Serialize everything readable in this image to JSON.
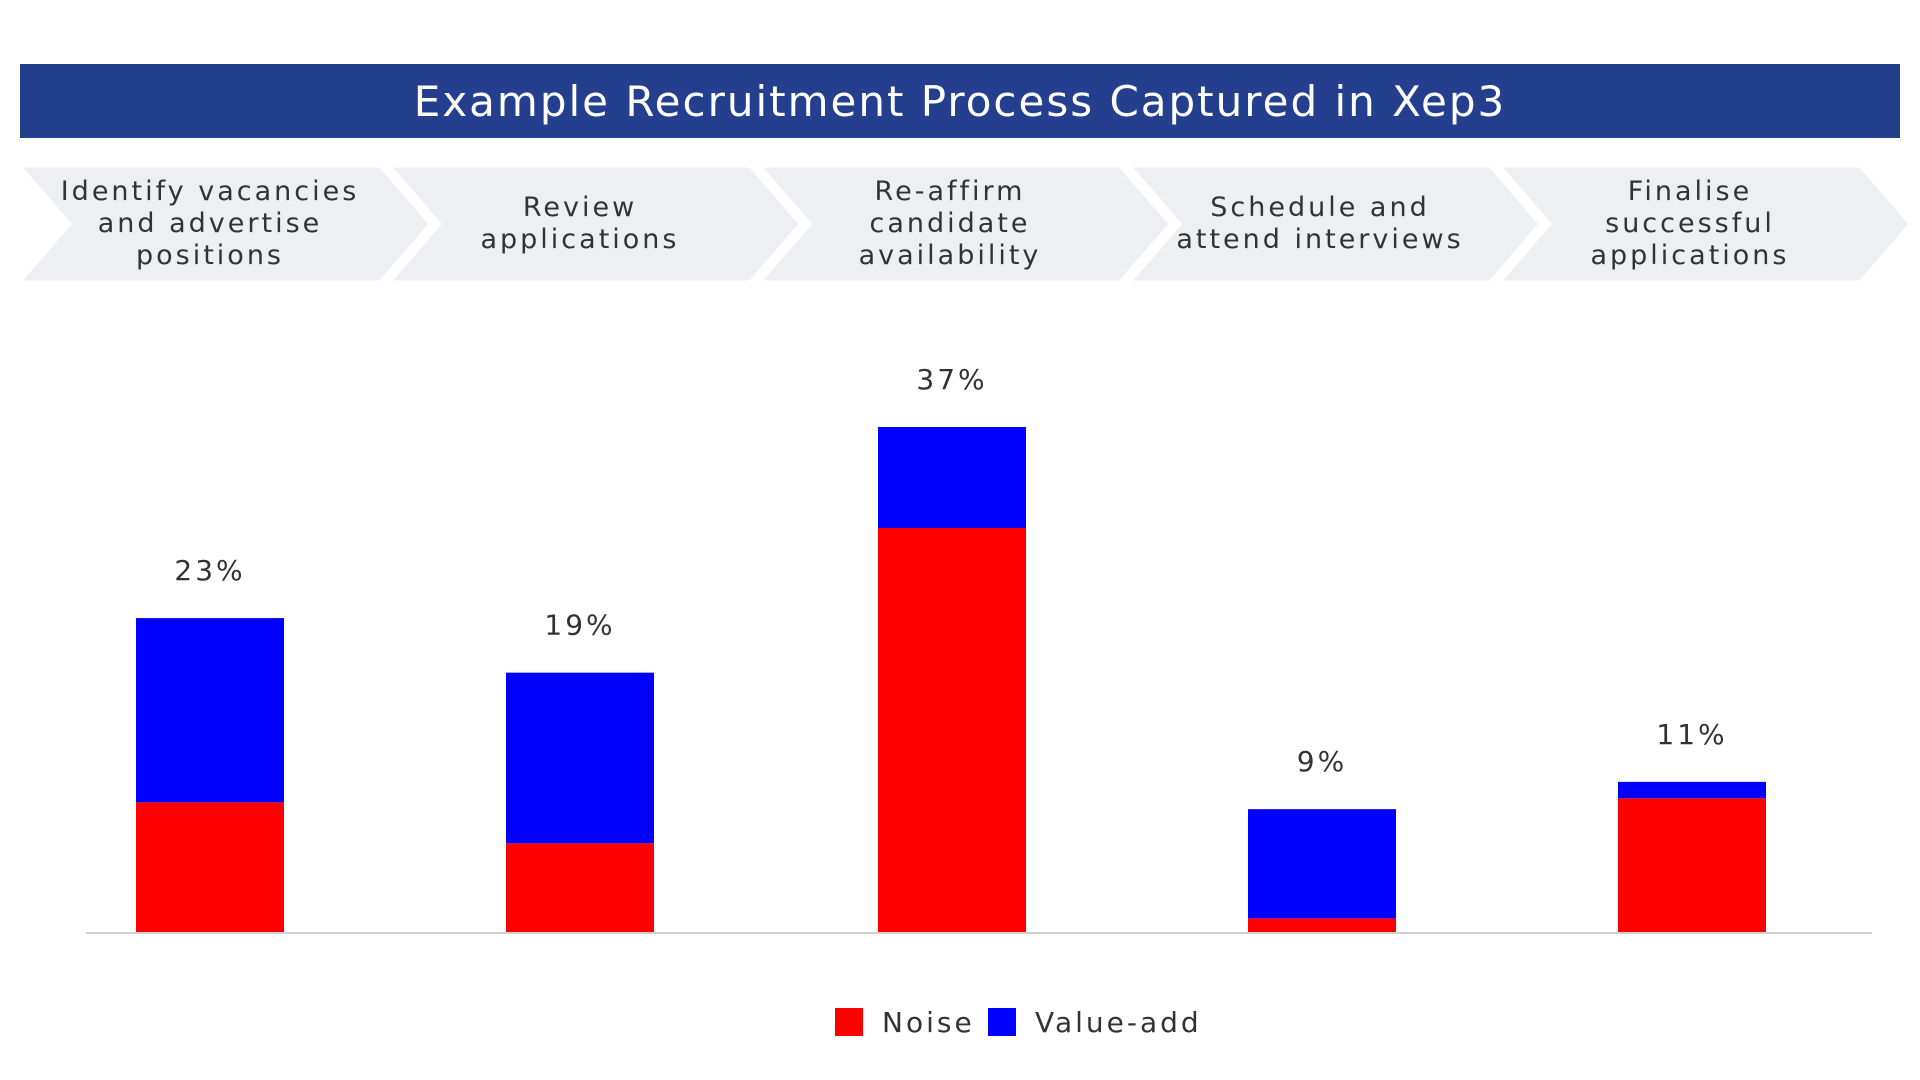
{
  "title": "Example Recruitment Process Captured in Xep3",
  "colors": {
    "banner": "#253f8f",
    "noise": "#ff0000",
    "value_add": "#0000ff",
    "chevron": "#eeeff2"
  },
  "stages": [
    {
      "label": "Identify vacancies\nand advertise\npositions"
    },
    {
      "label": "Review\napplications"
    },
    {
      "label": "Re-affirm\ncandidate\navailability"
    },
    {
      "label": "Schedule and\nattend interviews"
    },
    {
      "label": "Finalise\nsuccessful\napplications"
    }
  ],
  "chart_data": {
    "type": "bar",
    "stacked": true,
    "categories": [
      "Identify vacancies and advertise positions",
      "Review applications",
      "Re-affirm candidate availability",
      "Schedule and attend interviews",
      "Finalise successful applications"
    ],
    "series": [
      {
        "name": "Noise",
        "color": "#ff0000",
        "values": [
          9.5,
          6.5,
          29.6,
          1.0,
          9.8
        ]
      },
      {
        "name": "Value-add",
        "color": "#0000ff",
        "values": [
          13.5,
          12.5,
          7.4,
          8.0,
          1.2
        ]
      }
    ],
    "totals": [
      23,
      19,
      37,
      9,
      11
    ],
    "total_labels": [
      "23%",
      "19%",
      "37%",
      "9%",
      "11%"
    ],
    "ylim": [
      0,
      37
    ],
    "grid": false,
    "legend": "bottom-center",
    "title": "",
    "xlabel": "",
    "ylabel": ""
  }
}
